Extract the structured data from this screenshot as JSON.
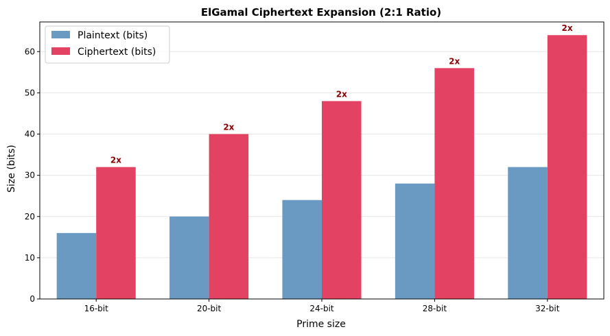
{
  "chart_data": {
    "type": "bar",
    "title": "ElGamal Ciphertext Expansion (2:1 Ratio)",
    "xlabel": "Prime size",
    "ylabel": "Size (bits)",
    "categories": [
      "16-bit",
      "20-bit",
      "24-bit",
      "28-bit",
      "32-bit"
    ],
    "series": [
      {
        "name": "Plaintext (bits)",
        "values": [
          16,
          20,
          24,
          28,
          32
        ],
        "color": "#6a9ac2"
      },
      {
        "name": "Ciphertext (bits)",
        "values": [
          32,
          40,
          48,
          56,
          64
        ],
        "color": "#e34262"
      }
    ],
    "annotations": [
      "2x",
      "2x",
      "2x",
      "2x",
      "2x"
    ],
    "annotation_color": "#8b0000",
    "ylim": [
      0,
      67.2
    ],
    "yticks": [
      0,
      10,
      20,
      30,
      40,
      50,
      60
    ],
    "grid": "y",
    "legend_position": "upper-left"
  }
}
